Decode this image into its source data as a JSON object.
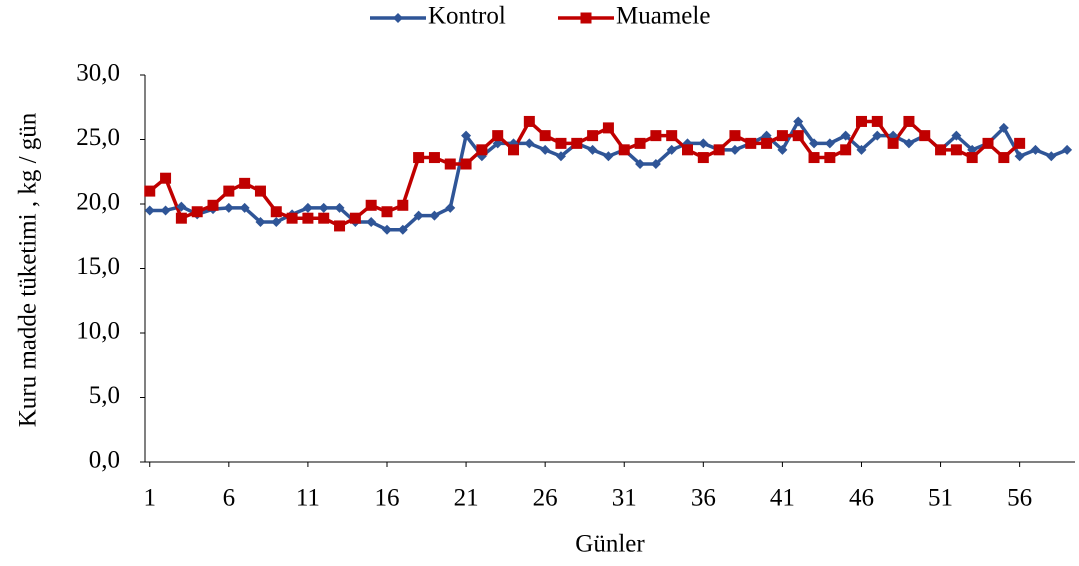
{
  "chart_data": {
    "type": "line",
    "y_label": "Kuru madde tüketimi , kg / gün",
    "x_label": "Günler",
    "x": [
      1,
      2,
      3,
      4,
      5,
      6,
      7,
      8,
      9,
      10,
      11,
      12,
      13,
      14,
      15,
      16,
      17,
      18,
      19,
      20,
      21,
      22,
      23,
      24,
      25,
      26,
      27,
      28,
      29,
      30,
      31,
      32,
      33,
      34,
      35,
      36,
      37,
      38,
      39,
      40,
      41,
      42,
      43,
      44,
      45,
      46,
      47,
      48,
      49,
      50,
      51,
      52,
      53,
      54,
      55,
      56,
      57,
      58,
      59
    ],
    "series": [
      {
        "name": "Kontrol",
        "color": "#2f5597",
        "marker": "diamond",
        "values": [
          19.5,
          19.5,
          19.8,
          19.2,
          19.6,
          19.7,
          19.7,
          18.6,
          18.6,
          19.2,
          19.7,
          19.7,
          19.7,
          18.6,
          18.6,
          18.0,
          18.0,
          19.1,
          19.1,
          19.7,
          25.3,
          23.7,
          24.7,
          24.7,
          24.7,
          24.2,
          23.7,
          24.7,
          24.2,
          23.7,
          24.2,
          23.1,
          23.1,
          24.2,
          24.7,
          24.7,
          24.2,
          24.2,
          24.7,
          25.3,
          24.2,
          26.4,
          24.7,
          24.7,
          25.3,
          24.2,
          25.3,
          25.3,
          24.7,
          25.3,
          24.2,
          25.3,
          24.2,
          24.7,
          25.9,
          23.7,
          24.2,
          23.7,
          24.2
        ]
      },
      {
        "name": "Muamele",
        "color": "#c00000",
        "marker": "square",
        "values": [
          21.0,
          22.0,
          18.9,
          19.4,
          19.9,
          21.0,
          21.6,
          21.0,
          19.4,
          18.9,
          18.9,
          18.9,
          18.3,
          18.9,
          19.9,
          19.4,
          19.9,
          23.6,
          23.6,
          23.1,
          23.1,
          24.2,
          25.3,
          24.2,
          26.4,
          25.3,
          24.7,
          24.7,
          25.3,
          25.9,
          24.2,
          24.7,
          25.3,
          25.3,
          24.2,
          23.6,
          24.2,
          25.3,
          24.7,
          24.7,
          25.3,
          25.3,
          23.6,
          23.6,
          24.2,
          26.4,
          26.4,
          24.7,
          26.4,
          25.3,
          24.2,
          24.2,
          23.6,
          24.7,
          23.6,
          24.7,
          null,
          null,
          null
        ]
      }
    ],
    "xlim": [
      0.7,
      59.5
    ],
    "xticks": [
      1,
      6,
      11,
      16,
      21,
      26,
      31,
      36,
      41,
      46,
      51,
      56
    ],
    "ylim": [
      0,
      30
    ],
    "yticks": [
      {
        "value": 0,
        "label": "0,0"
      },
      {
        "value": 5,
        "label": "5,0"
      },
      {
        "value": 10,
        "label": "10,0"
      },
      {
        "value": 15,
        "label": "15,0"
      },
      {
        "value": 20,
        "label": "20,0"
      },
      {
        "value": 25,
        "label": "25,0"
      },
      {
        "value": 30,
        "label": "30,0"
      }
    ],
    "legend": "top"
  }
}
